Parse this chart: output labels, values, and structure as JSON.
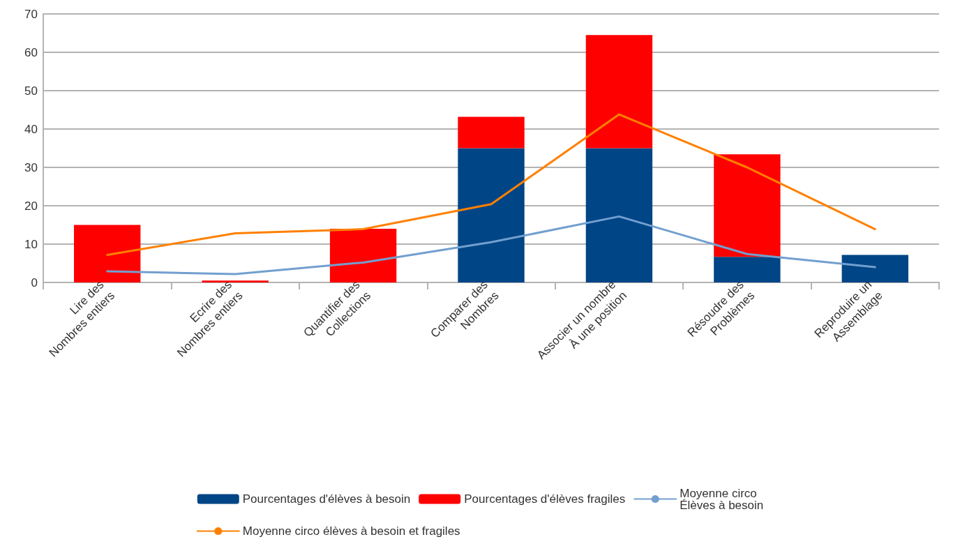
{
  "chart_data": {
    "type": "bar",
    "stacked": true,
    "categories": [
      "Lire des\nNombres entiers",
      "Ecrire des\nNombres entiers",
      "Quantifier des\nCollections",
      "Comparer des\nNombres",
      "Associer un nombre\nÀ une position",
      "Résoudre des\nProblèmes",
      "Reproduire un\nAssemblage"
    ],
    "series": [
      {
        "name": "Pourcentages d'élèves à besoin",
        "color": "#004586",
        "values": [
          0,
          0,
          0,
          35,
          35,
          6.7,
          7.2
        ]
      },
      {
        "name": "Pourcentages d'élèves fragiles",
        "color": "#ff0000",
        "values": [
          15,
          0.5,
          14,
          8.2,
          29.5,
          26.7,
          0
        ]
      },
      {
        "name": "Moyenne circo\nÉlèves à besoin",
        "type": "line",
        "color": "#729fcf",
        "values": [
          2.9,
          2.2,
          5.2,
          10.5,
          17.2,
          7.4,
          4
        ]
      },
      {
        "name": "Moyenne circo élèves à besoin et fragiles",
        "type": "line",
        "color": "#ff8000",
        "values": [
          7.2,
          12.8,
          13.9,
          20.4,
          43.8,
          30,
          13.9
        ]
      }
    ],
    "ylim": [
      0,
      70
    ],
    "yticks": [
      0,
      10,
      20,
      30,
      40,
      50,
      60,
      70
    ],
    "grid": "y",
    "legend": "bottom",
    "marker": "none",
    "line_style": "solid"
  }
}
